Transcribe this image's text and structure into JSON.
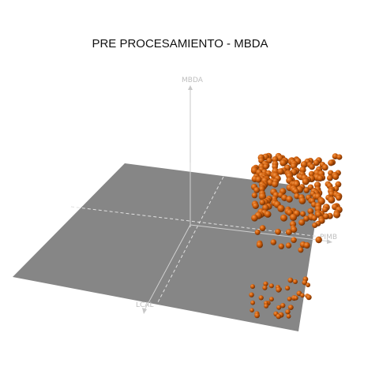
{
  "window": {
    "title": "PRE PROCESAMIENTO - MBDA"
  },
  "axes": {
    "z_label": "MBDA",
    "x_label": "PIMB",
    "y_label": "LCAL",
    "label_color": "#bfbfbf",
    "axis_line_color": "#c8c8c8",
    "grid_line_color": "#e0e0e0"
  },
  "plane": {
    "color": "#868686"
  },
  "points": {
    "color": "#d2600c",
    "highlight_color": "#f39a4e",
    "shadow_color": "#6b2c02"
  }
}
